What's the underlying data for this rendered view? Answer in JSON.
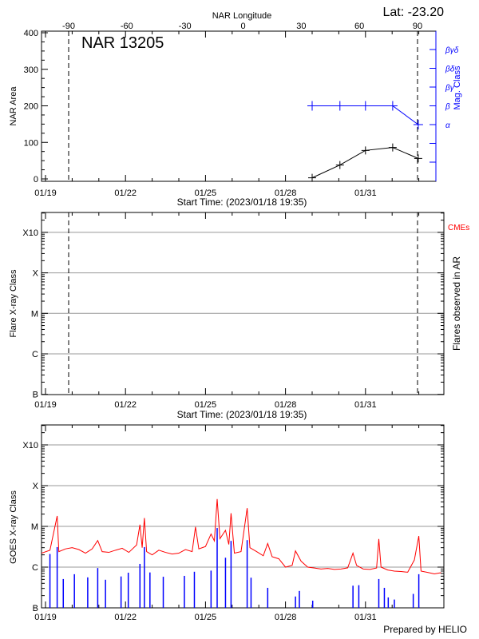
{
  "header": {
    "latitude_label": "Lat: -23.20",
    "longitude_axis_label": "NAR Longitude",
    "longitude_ticks": [
      -90,
      -60,
      -30,
      0,
      30,
      60,
      90
    ],
    "prepared_by": "Prepared by HELIO"
  },
  "colors": {
    "axis": "#000000",
    "mag_class": "#0000ff",
    "goes_long": "#ff0000",
    "goes_short": "#0000ff",
    "cme": "#ff0000",
    "grid": "#999999"
  },
  "time_axis": {
    "start_time_label": "Start Time: (2023/01/18 19:35)",
    "range": [
      "01/18 19:35",
      "02/02 22:30"
    ],
    "tick_labels": [
      "01/19",
      "01/22",
      "01/25",
      "01/28",
      "01/31"
    ]
  },
  "chart_data": [
    {
      "type": "line",
      "title": "NAR 13205",
      "ylabel": "NAR Area",
      "ylim": [
        0,
        400
      ],
      "yticks": [
        0,
        100,
        200,
        300,
        400
      ],
      "limb_longitudes": [
        -90,
        90
      ],
      "area_series": {
        "x": [
          "01/29 00:00",
          "01/30 01:00",
          "01/31 00:00",
          "02/01 00:30",
          "02/01 23:30"
        ],
        "values": [
          3,
          38,
          78,
          86,
          56
        ]
      },
      "mag_class_axis": {
        "label": "Mag. Class",
        "ticks": [
          "βγδ",
          "βδ",
          "βγ",
          "β",
          "α",
          "",
          ""
        ]
      },
      "mag_class_series": {
        "x": [
          "01/29 00:00",
          "01/30 01:00",
          "01/31 00:00",
          "02/01 00:30",
          "02/01 23:30"
        ],
        "values": [
          "β",
          "β",
          "β",
          "β",
          "α"
        ]
      }
    },
    {
      "type": "scatter",
      "ylabel": "Flare X-ray Class",
      "right_label": "Flares observed in AR",
      "cme_label": "CMEs",
      "yscale": "log",
      "yticks": [
        "B",
        "C",
        "M",
        "X",
        "X10"
      ],
      "ytick_flux": [
        1e-07,
        1e-06,
        1e-05,
        0.0001,
        0.001
      ],
      "grid": true,
      "flares": []
    },
    {
      "type": "line",
      "ylabel": "GOES X-ray Class",
      "yscale": "log",
      "yticks": [
        "B",
        "C",
        "M",
        "X",
        "X10"
      ],
      "ytick_flux": [
        1e-07,
        1e-06,
        1e-05,
        0.0001,
        0.001
      ],
      "grid": true,
      "long_channel": [
        [
          "01/18 19:35",
          2.2e-06
        ],
        [
          "01/19 04:00",
          2.6e-06
        ],
        [
          "01/19 10:30",
          1.8e-05
        ],
        [
          "01/19 12:00",
          2.4e-06
        ],
        [
          "01/19 18:00",
          2.8e-06
        ],
        [
          "01/20 00:00",
          3e-06
        ],
        [
          "01/20 06:00",
          2.7e-06
        ],
        [
          "01/20 12:00",
          2.2e-06
        ],
        [
          "01/20 18:00",
          2.8e-06
        ],
        [
          "01/20 23:00",
          4.5e-06
        ],
        [
          "01/21 03:00",
          2.4e-06
        ],
        [
          "01/21 09:00",
          2.3e-06
        ],
        [
          "01/21 15:00",
          2.6e-06
        ],
        [
          "01/21 21:00",
          2.9e-06
        ],
        [
          "01/22 03:00",
          2.3e-06
        ],
        [
          "01/22 10:00",
          3.5e-06
        ],
        [
          "01/22 13:00",
          1.1e-05
        ],
        [
          "01/22 15:00",
          3e-06
        ],
        [
          "01/22 17:00",
          1.6e-05
        ],
        [
          "01/22 19:00",
          2.4e-06
        ],
        [
          "01/23 00:00",
          2e-06
        ],
        [
          "01/23 06:00",
          2.6e-06
        ],
        [
          "01/23 12:00",
          2.3e-06
        ],
        [
          "01/23 18:00",
          2.1e-06
        ],
        [
          "01/24 00:00",
          2.2e-06
        ],
        [
          "01/24 06:00",
          2.7e-06
        ],
        [
          "01/24 12:00",
          2.4e-06
        ],
        [
          "01/24 15:00",
          9.7e-06
        ],
        [
          "01/24 18:00",
          2.8e-06
        ],
        [
          "01/25 00:00",
          3.2e-06
        ],
        [
          "01/25 05:00",
          6.5e-06
        ],
        [
          "01/25 08:00",
          4.4e-06
        ],
        [
          "01/25 10:30",
          4.7e-05
        ],
        [
          "01/25 13:00",
          5e-06
        ],
        [
          "01/25 18:00",
          8e-06
        ],
        [
          "01/25 21:00",
          3.6e-06
        ],
        [
          "01/25 23:00",
          2.1e-05
        ],
        [
          "01/26 02:00",
          2.2e-06
        ],
        [
          "01/26 08:00",
          2.4e-06
        ],
        [
          "01/26 13:30",
          2.8e-05
        ],
        [
          "01/26 16:00",
          3e-06
        ],
        [
          "01/26 22:00",
          2.4e-06
        ],
        [
          "01/27 04:00",
          1.9e-06
        ],
        [
          "01/27 08:00",
          3.8e-06
        ],
        [
          "01/27 12:00",
          1.8e-06
        ],
        [
          "01/27 18:00",
          1.6e-06
        ],
        [
          "01/28 00:00",
          1e-06
        ],
        [
          "01/28 06:00",
          1.1e-06
        ],
        [
          "01/28 09:00",
          2.5e-06
        ],
        [
          "01/28 14:00",
          1.4e-06
        ],
        [
          "01/28 20:00",
          1e-06
        ],
        [
          "01/29 02:00",
          9.5e-07
        ],
        [
          "01/29 08:00",
          9e-07
        ],
        [
          "01/29 14:00",
          9.3e-07
        ],
        [
          "01/29 20:00",
          8.8e-07
        ],
        [
          "01/30 02:00",
          9e-07
        ],
        [
          "01/30 08:00",
          9.6e-07
        ],
        [
          "01/30 12:45",
          2.2e-06
        ],
        [
          "01/30 16:00",
          1.1e-06
        ],
        [
          "01/30 22:00",
          9e-07
        ],
        [
          "01/31 04:00",
          8.8e-07
        ],
        [
          "01/31 10:00",
          9.5e-07
        ],
        [
          "01/31 12:00",
          4.9e-06
        ],
        [
          "01/31 14:00",
          1e-06
        ],
        [
          "01/31 20:00",
          8.5e-07
        ],
        [
          "02/01 02:00",
          8e-07
        ],
        [
          "02/01 08:00",
          7.8e-07
        ],
        [
          "02/01 14:00",
          7.5e-07
        ],
        [
          "02/01 20:00",
          1.5e-06
        ],
        [
          "02/02 00:00",
          5.8e-06
        ],
        [
          "02/02 02:00",
          8e-07
        ],
        [
          "02/02 08:00",
          7.4e-07
        ],
        [
          "02/02 14:00",
          6.8e-07
        ],
        [
          "02/02 20:00",
          7.3e-07
        ]
      ],
      "short_channel_peaks": [
        [
          "01/19 04:00",
          2.1e-06
        ],
        [
          "01/19 10:30",
          3.1e-06
        ],
        [
          "01/19 16:00",
          5.1e-07
        ],
        [
          "01/20 02:00",
          6.7e-07
        ],
        [
          "01/20 14:00",
          5.6e-07
        ],
        [
          "01/20 23:00",
          9.5e-07
        ],
        [
          "01/21 06:00",
          4.9e-07
        ],
        [
          "01/21 20:00",
          5.9e-07
        ],
        [
          "01/22 02:30",
          7.3e-07
        ],
        [
          "01/22 13:00",
          1.2e-06
        ],
        [
          "01/22 17:00",
          3.1e-06
        ],
        [
          "01/22 22:00",
          7.4e-07
        ],
        [
          "01/23 10:00",
          5.8e-07
        ],
        [
          "01/24 05:00",
          6.1e-07
        ],
        [
          "01/24 14:00",
          7.7e-07
        ],
        [
          "01/25 05:00",
          8.2e-07
        ],
        [
          "01/25 10:30",
          9.1e-06
        ],
        [
          "01/25 18:00",
          1.7e-06
        ],
        [
          "01/25 23:00",
          4.4e-06
        ],
        [
          "01/26 13:30",
          4.6e-06
        ],
        [
          "01/26 17:00",
          5.5e-07
        ],
        [
          "01/27 08:00",
          3.1e-07
        ],
        [
          "01/28 09:00",
          1.9e-07
        ],
        [
          "01/28 12:30",
          2.6e-07
        ],
        [
          "01/29 00:30",
          1.5e-07
        ],
        [
          "01/30 12:45",
          3.5e-07
        ],
        [
          "01/30 18:00",
          3.6e-07
        ],
        [
          "01/31 12:00",
          5.1e-07
        ],
        [
          "01/31 17:00",
          3.1e-07
        ],
        [
          "01/31 20:30",
          1.8e-07
        ],
        [
          "02/01 02:00",
          1.6e-07
        ],
        [
          "02/01 19:00",
          2.2e-07
        ],
        [
          "02/02 00:00",
          6.7e-07
        ]
      ]
    }
  ]
}
